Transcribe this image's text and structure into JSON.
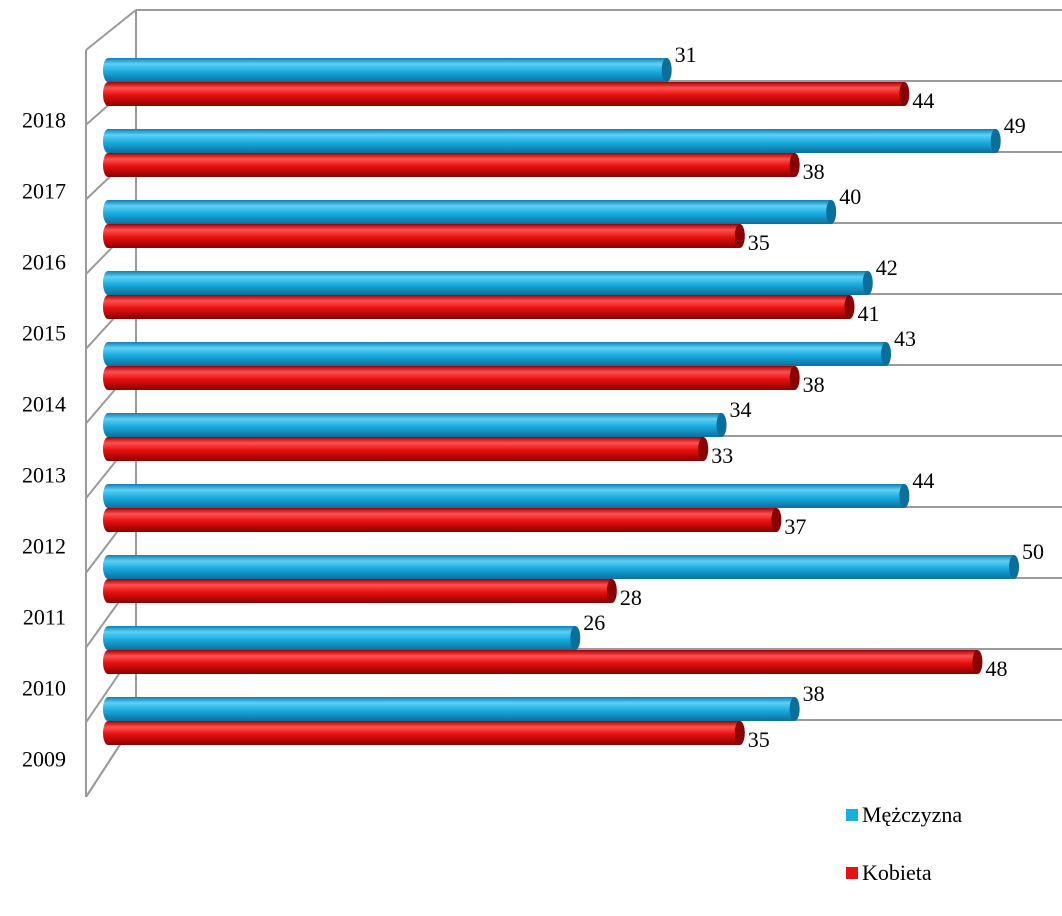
{
  "chart_data": {
    "type": "bar",
    "orientation": "horizontal",
    "style": "3d-cylinder",
    "categories": [
      "2018",
      "2017",
      "2016",
      "2015",
      "2014",
      "2013",
      "2012",
      "2011",
      "2010",
      "2009"
    ],
    "series": [
      {
        "name": "Mężczyzna",
        "color": "#1AAEE0",
        "values": [
          31,
          49,
          40,
          42,
          43,
          34,
          44,
          50,
          26,
          38
        ]
      },
      {
        "name": "Kobieta",
        "color": "#E81010",
        "values": [
          44,
          38,
          35,
          41,
          38,
          33,
          37,
          28,
          48,
          35
        ]
      }
    ],
    "xlim": [
      0,
      50
    ],
    "grid": true,
    "legend_position": "bottom-right",
    "title": "",
    "xlabel": "",
    "ylabel": ""
  }
}
